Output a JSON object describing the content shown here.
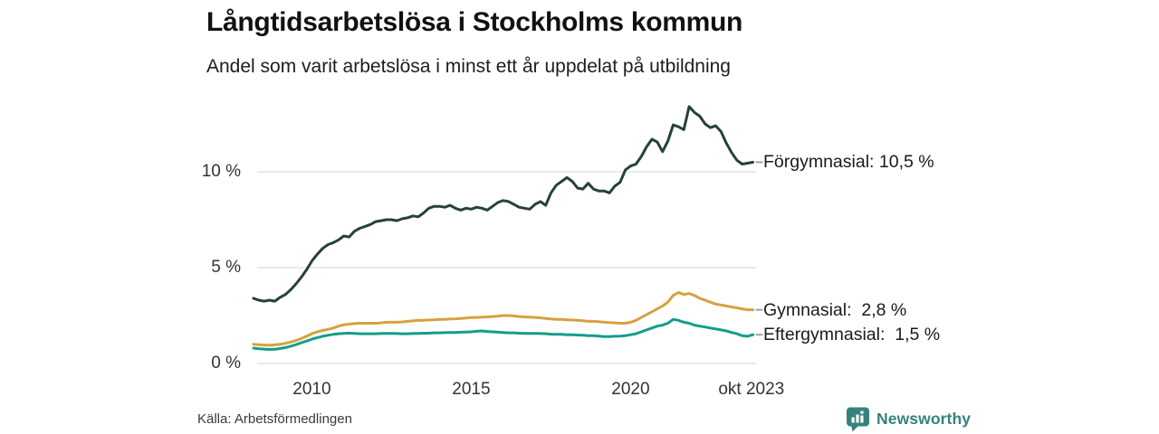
{
  "header": {
    "title": "Långtidsarbetslösa i Stockholms kommun",
    "subtitle": "Andel som varit arbetslösa i minst ett år uppdelat på utbildning"
  },
  "footer": {
    "source": "Källa: Arbetsförmedlingen",
    "brand": "Newsworthy"
  },
  "colors": {
    "gridline": "#E2E2E8",
    "connector": "#999999",
    "axis_text": "#333333",
    "brand_teal": "#35827C"
  },
  "chart_data": {
    "type": "line",
    "title": "Långtidsarbetslösa i Stockholms kommun",
    "subtitle": "Andel som varit arbetslösa i minst ett år uppdelat på utbildning",
    "grid": "horizontal",
    "legend_position": "right-end-labels",
    "x_unit": "decimal_year",
    "x_start": 2008.17,
    "x_step": 0.16667,
    "xlim": [
      2008.17,
      2023.83
    ],
    "ylim": [
      0,
      14
    ],
    "x_axis": {
      "ticks": [
        2010,
        2015,
        2020,
        2023.79
      ],
      "labels": [
        "2010",
        "2015",
        "2020",
        "okt 2023"
      ]
    },
    "y_axis": {
      "ticks": [
        0,
        5,
        10
      ],
      "labels": [
        "0 %",
        "5 %",
        "10 %"
      ]
    },
    "series": [
      {
        "name": "Förgymnasial",
        "end_label": "Förgymnasial: 10,5 %",
        "end_value": "10,5 %",
        "color": "#254239",
        "y": [
          3.4,
          3.3,
          3.25,
          3.3,
          3.25,
          3.45,
          3.6,
          3.85,
          4.15,
          4.5,
          4.9,
          5.35,
          5.7,
          6.0,
          6.2,
          6.3,
          6.45,
          6.65,
          6.6,
          6.9,
          7.05,
          7.15,
          7.25,
          7.4,
          7.45,
          7.5,
          7.5,
          7.45,
          7.55,
          7.6,
          7.7,
          7.65,
          7.85,
          8.1,
          8.2,
          8.2,
          8.15,
          8.25,
          8.1,
          8.0,
          8.1,
          8.05,
          8.15,
          8.1,
          8.0,
          8.2,
          8.4,
          8.5,
          8.45,
          8.3,
          8.15,
          8.1,
          8.05,
          8.3,
          8.45,
          8.25,
          8.9,
          9.3,
          9.5,
          9.7,
          9.5,
          9.15,
          9.1,
          9.4,
          9.1,
          9.0,
          9.0,
          8.9,
          9.25,
          9.45,
          10.1,
          10.3,
          10.4,
          10.8,
          11.3,
          11.7,
          11.55,
          11.05,
          11.6,
          12.45,
          12.35,
          12.2,
          13.4,
          13.1,
          12.9,
          12.5,
          12.3,
          12.4,
          12.1,
          11.5,
          11.0,
          10.6,
          10.4,
          10.45,
          10.5
        ]
      },
      {
        "name": "Gymnasial",
        "end_label": "Gymnasial:  2,8 %",
        "end_value": "2,8 %",
        "color": "#D7A13E",
        "y": [
          1.0,
          0.98,
          0.96,
          0.95,
          0.97,
          1.0,
          1.05,
          1.12,
          1.2,
          1.3,
          1.42,
          1.55,
          1.65,
          1.72,
          1.78,
          1.85,
          1.95,
          2.02,
          2.05,
          2.08,
          2.1,
          2.1,
          2.1,
          2.1,
          2.12,
          2.15,
          2.15,
          2.15,
          2.17,
          2.2,
          2.22,
          2.25,
          2.25,
          2.27,
          2.28,
          2.3,
          2.3,
          2.32,
          2.33,
          2.35,
          2.37,
          2.4,
          2.4,
          2.42,
          2.43,
          2.45,
          2.47,
          2.5,
          2.5,
          2.48,
          2.45,
          2.43,
          2.42,
          2.4,
          2.38,
          2.35,
          2.32,
          2.3,
          2.3,
          2.28,
          2.27,
          2.25,
          2.23,
          2.2,
          2.2,
          2.18,
          2.15,
          2.13,
          2.12,
          2.1,
          2.1,
          2.15,
          2.25,
          2.4,
          2.55,
          2.7,
          2.85,
          3.0,
          3.2,
          3.55,
          3.7,
          3.6,
          3.65,
          3.55,
          3.4,
          3.3,
          3.2,
          3.1,
          3.05,
          3.0,
          2.95,
          2.9,
          2.85,
          2.8,
          2.8
        ]
      },
      {
        "name": "Eftergymnasial",
        "end_label": "Eftergymnasial:  1,5 %",
        "end_value": "1,5 %",
        "color": "#149D8B",
        "y": [
          0.8,
          0.77,
          0.75,
          0.73,
          0.74,
          0.78,
          0.83,
          0.9,
          0.98,
          1.08,
          1.17,
          1.27,
          1.35,
          1.42,
          1.47,
          1.52,
          1.55,
          1.57,
          1.58,
          1.57,
          1.55,
          1.55,
          1.55,
          1.55,
          1.56,
          1.57,
          1.57,
          1.56,
          1.55,
          1.55,
          1.56,
          1.57,
          1.58,
          1.58,
          1.6,
          1.6,
          1.61,
          1.62,
          1.62,
          1.63,
          1.64,
          1.65,
          1.68,
          1.7,
          1.67,
          1.65,
          1.63,
          1.62,
          1.6,
          1.6,
          1.58,
          1.57,
          1.57,
          1.57,
          1.56,
          1.55,
          1.53,
          1.52,
          1.52,
          1.5,
          1.5,
          1.48,
          1.47,
          1.45,
          1.45,
          1.43,
          1.4,
          1.4,
          1.42,
          1.43,
          1.45,
          1.5,
          1.55,
          1.65,
          1.75,
          1.85,
          1.95,
          2.0,
          2.1,
          2.3,
          2.25,
          2.15,
          2.1,
          2.0,
          1.95,
          1.9,
          1.85,
          1.8,
          1.75,
          1.7,
          1.62,
          1.55,
          1.45,
          1.42,
          1.5
        ]
      }
    ]
  }
}
